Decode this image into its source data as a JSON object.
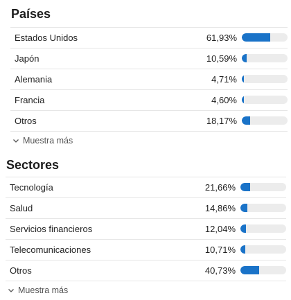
{
  "countries": {
    "title": "Países",
    "rows": [
      {
        "label": "Estados Unidos",
        "value": "61,93%",
        "pct": 61.93
      },
      {
        "label": "Japón",
        "value": "10,59%",
        "pct": 10.59
      },
      {
        "label": "Alemania",
        "value": "4,71%",
        "pct": 4.71
      },
      {
        "label": "Francia",
        "value": "4,60%",
        "pct": 4.6
      },
      {
        "label": "Otros",
        "value": "18,17%",
        "pct": 18.17
      }
    ],
    "more_label": "Muestra más"
  },
  "sectors": {
    "title": "Sectores",
    "rows": [
      {
        "label": "Tecnología",
        "value": "21,66%",
        "pct": 21.66
      },
      {
        "label": "Salud",
        "value": "14,86%",
        "pct": 14.86
      },
      {
        "label": "Servicios financieros",
        "value": "12,04%",
        "pct": 12.04
      },
      {
        "label": "Telecomunicaciones",
        "value": "10,71%",
        "pct": 10.71
      },
      {
        "label": "Otros",
        "value": "40,73%",
        "pct": 40.73
      }
    ],
    "more_label": "Muestra más"
  },
  "colors": {
    "bar_fill": "#1a73c8",
    "bar_track": "#ececec"
  },
  "icons": {
    "more": "chevron-down-icon"
  }
}
